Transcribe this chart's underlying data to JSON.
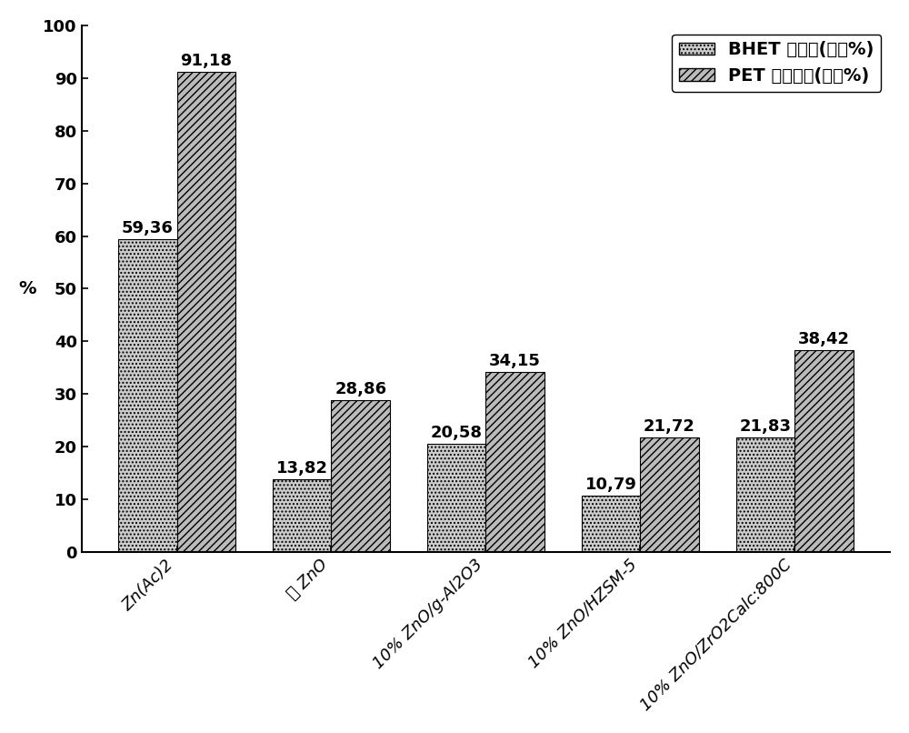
{
  "category_labels": [
    "Zn(Ac)2",
    "纯 ZnO",
    "10% ZnO/g-Al2O3",
    "10% ZnO/HZSM-5",
    "10% ZnO/ZrO2Calc:800C"
  ],
  "bhet_values": [
    59.36,
    13.82,
    20.58,
    10.79,
    21.83
  ],
  "pet_values": [
    91.18,
    28.86,
    34.15,
    21.72,
    38.42
  ],
  "bhet_label": "BHET 的产率(摸尔%)",
  "pet_label": "PET 的转化率(重量%)",
  "ylabel": "%",
  "ylim": [
    0,
    100
  ],
  "yticks": [
    0,
    10,
    20,
    30,
    40,
    50,
    60,
    70,
    80,
    90,
    100
  ],
  "bar_width": 0.38,
  "bhet_color": "#cccccc",
  "bhet_hatch": "....",
  "pet_color": "#bbbbbb",
  "pet_hatch": "////",
  "background_color": "#ffffff",
  "label_fontsize": 14,
  "tick_fontsize": 13,
  "legend_fontsize": 14,
  "value_fontsize": 13
}
